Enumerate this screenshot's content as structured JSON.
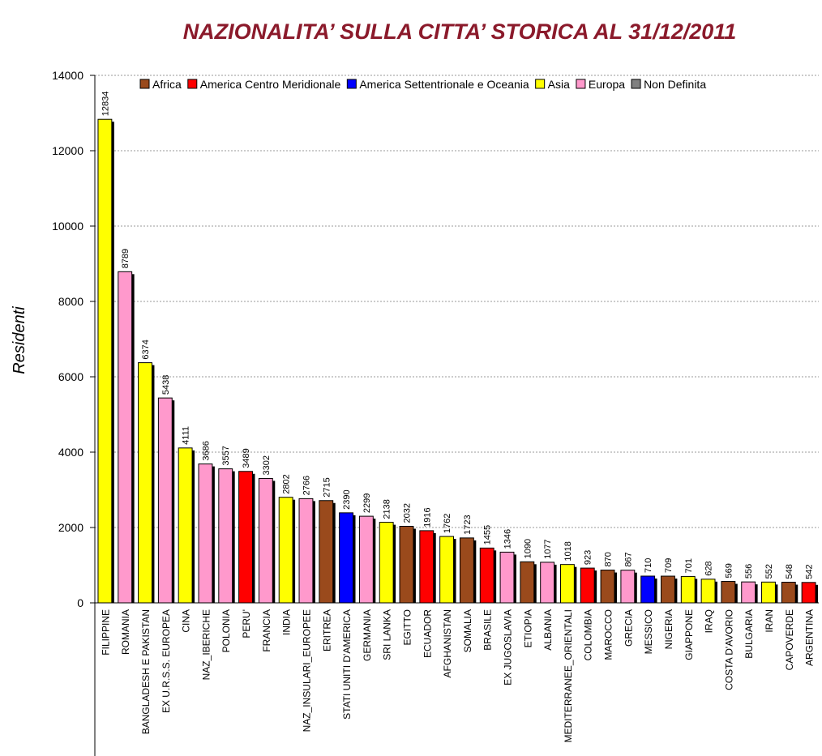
{
  "chart_data": {
    "type": "bar",
    "title": "NAZIONALITA’ SULLA CITTA’ STORICA AL 31/12/2011",
    "y_label": "Residenti",
    "categories": [
      "FILIPPINE",
      "ROMANIA",
      "BANGLADESH E PAKISTAN",
      "EX U.R.S.S. EUROPEA",
      "CINA",
      "NAZ_IBERICHE",
      "POLONIA",
      "PERU'",
      "FRANCIA",
      "INDIA",
      "NAZ_INSULARI_EUROPEE",
      "ERITREA",
      "STATI UNITI D'AMERICA",
      "GERMANIA",
      "SRI LANKA",
      "EGITTO",
      "ECUADOR",
      "AFGHANISTAN",
      "SOMALIA",
      "BRASILE",
      "EX JUGOSLAVIA",
      "ETIOPIA",
      "ALBANIA",
      "MEDITERRANEE_ORIENTALI",
      "COLOMBIA",
      "MAROCCO",
      "GRECIA",
      "MESSICO",
      "NIGERIA",
      "GIAPPONE",
      "IRAQ",
      "COSTA D'AVORIO",
      "BULGARIA",
      "IRAN",
      "CAPOVERDE",
      "ARGENTINA"
    ],
    "series": [
      {
        "name": "Africa",
        "color": "#9a4a1c",
        "values": [
          null,
          null,
          null,
          null,
          null,
          null,
          null,
          null,
          null,
          null,
          null,
          2715,
          null,
          null,
          null,
          2032,
          null,
          null,
          1723,
          null,
          null,
          1090,
          null,
          null,
          null,
          870,
          null,
          null,
          709,
          null,
          null,
          569,
          null,
          null,
          548,
          null
        ]
      },
      {
        "name": "America Centro Meridionale",
        "color": "#ff0000",
        "values": [
          null,
          null,
          null,
          null,
          null,
          null,
          null,
          3489,
          null,
          null,
          null,
          null,
          null,
          null,
          null,
          null,
          1916,
          null,
          null,
          1455,
          null,
          null,
          null,
          null,
          923,
          null,
          null,
          null,
          null,
          null,
          null,
          null,
          null,
          null,
          null,
          542
        ]
      },
      {
        "name": "America Settentrionale e Oceania",
        "color": "#0000ff",
        "values": [
          null,
          null,
          null,
          null,
          null,
          null,
          null,
          null,
          null,
          null,
          null,
          null,
          2390,
          null,
          null,
          null,
          null,
          null,
          null,
          null,
          null,
          null,
          null,
          null,
          null,
          null,
          null,
          710,
          null,
          null,
          null,
          null,
          null,
          null,
          null,
          null
        ]
      },
      {
        "name": "Asia",
        "color": "#ffff00",
        "values": [
          12834,
          null,
          6374,
          null,
          4111,
          null,
          null,
          null,
          null,
          2802,
          null,
          null,
          null,
          null,
          2138,
          null,
          null,
          1762,
          null,
          null,
          null,
          null,
          null,
          1018,
          null,
          null,
          null,
          null,
          null,
          701,
          628,
          null,
          null,
          552,
          null,
          null
        ]
      },
      {
        "name": "Europa",
        "color": "#ff99cc",
        "values": [
          null,
          8789,
          null,
          5438,
          null,
          3686,
          3557,
          null,
          3302,
          null,
          2766,
          null,
          null,
          2299,
          null,
          null,
          null,
          null,
          null,
          null,
          1346,
          null,
          1077,
          null,
          null,
          null,
          867,
          null,
          null,
          null,
          null,
          null,
          556,
          null,
          null,
          null
        ]
      },
      {
        "name": "Non Definita",
        "color": "#808080",
        "values": [
          null,
          null,
          null,
          null,
          null,
          null,
          null,
          null,
          null,
          null,
          null,
          null,
          null,
          null,
          null,
          null,
          null,
          null,
          null,
          null,
          null,
          null,
          null,
          null,
          null,
          null,
          null,
          null,
          null,
          null,
          null,
          null,
          null,
          null,
          null,
          null
        ]
      }
    ],
    "ylim": [
      0,
      14000
    ],
    "yticks": [
      0,
      2000,
      4000,
      6000,
      8000,
      10000,
      12000,
      14000
    ],
    "grid": true,
    "legend": "top"
  }
}
